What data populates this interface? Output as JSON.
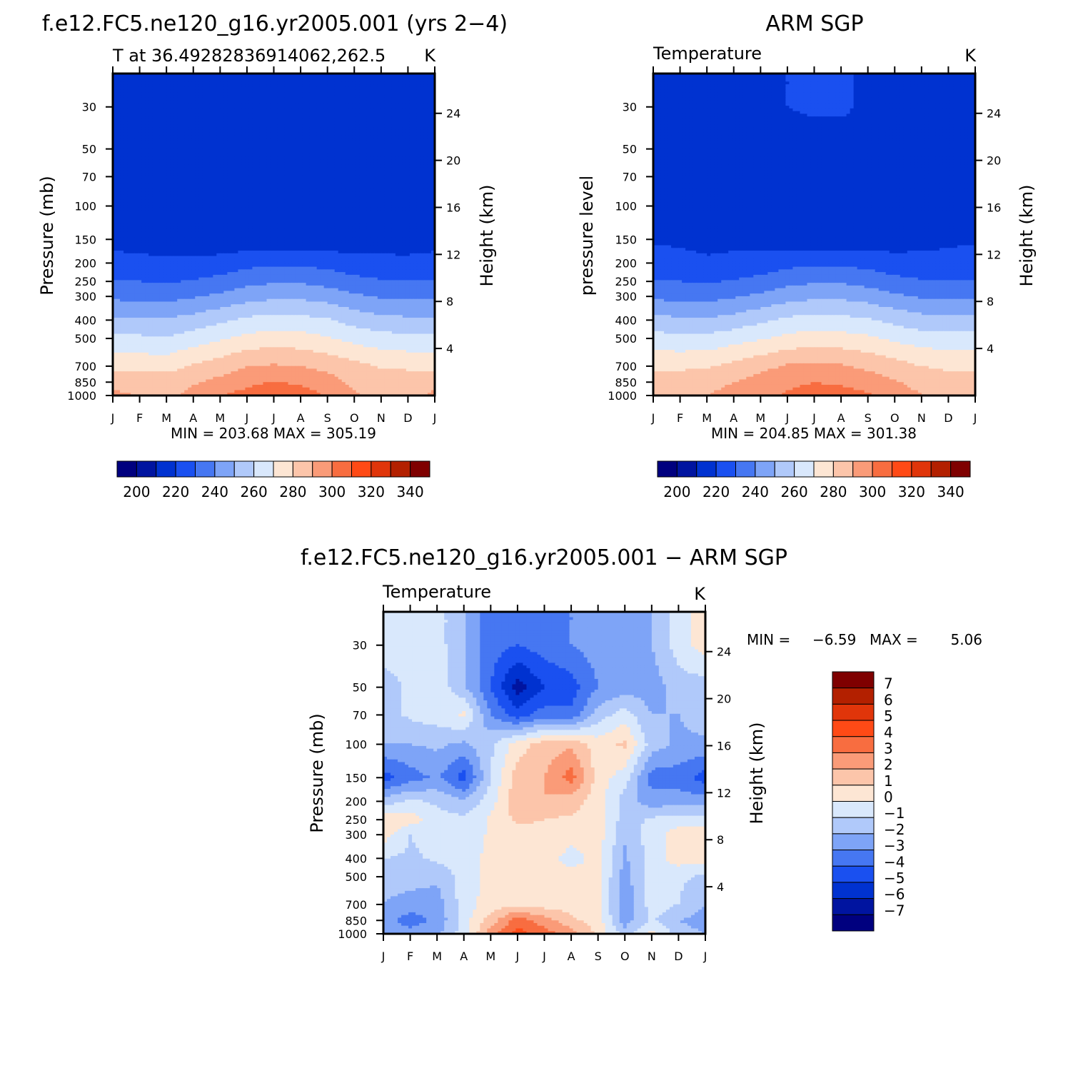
{
  "chart_data": [
    {
      "type": "heatmap",
      "id": "model",
      "title": "f.e12.FC5.ne120_g16.yr2005.001 (yrs 2−4)",
      "subtitle_left": "T at 36.49282836914062,262.5",
      "subtitle_right": "K",
      "ylabel": "Pressure (mb)",
      "ylabel_right": "Height (km)",
      "xlabel": "",
      "months": [
        "J",
        "F",
        "M",
        "A",
        "M",
        "J",
        "J",
        "A",
        "S",
        "O",
        "N",
        "D",
        "J"
      ],
      "pressure_levels": [
        1000,
        850,
        700,
        500,
        400,
        300,
        250,
        200,
        150,
        100,
        70,
        50,
        30
      ],
      "pressure_ticks": [
        "30",
        "50",
        "70",
        "100",
        "150",
        "200",
        "250",
        "300",
        "400",
        "500",
        "700",
        "850",
        "1000"
      ],
      "height_ticks": [
        4,
        8,
        12,
        16,
        20,
        24
      ],
      "ylim_mb": [
        1000,
        20
      ],
      "stats": "MIN = 203.68 MAX = 305.19",
      "colorbar": {
        "levels": [
          190,
          195,
          205,
          215,
          225,
          235,
          245,
          255,
          265,
          275,
          285,
          295,
          305,
          315,
          325,
          335
        ],
        "tick_labels": [
          "200",
          "220",
          "240",
          "260",
          "280",
          "300",
          "320",
          "340"
        ],
        "colors": [
          "#00007f",
          "#0014a0",
          "#0032d0",
          "#1a50f0",
          "#4677f2",
          "#7ea4f7",
          "#b0c9fa",
          "#d9e8fc",
          "#fde6d4",
          "#fcc5aa",
          "#fa9b78",
          "#f86d40",
          "#ff4a16",
          "#e0350a",
          "#b32000",
          "#7f0000"
        ]
      },
      "rows": [
        {
          "p": 1000,
          "values": [
            288,
            284,
            282,
            288,
            294,
            299,
            302,
            300,
            294,
            286,
            282,
            280,
            288
          ]
        },
        {
          "p": 850,
          "values": [
            281,
            281,
            281,
            284,
            288,
            292,
            296,
            293,
            289,
            283,
            281,
            281,
            281
          ]
        },
        {
          "p": 700,
          "values": [
            273,
            272,
            271,
            276,
            280,
            285,
            286,
            285,
            282,
            278,
            274,
            273,
            273
          ]
        },
        {
          "p": 500,
          "values": [
            258,
            257,
            256,
            260,
            264,
            268,
            270,
            269,
            266,
            262,
            259,
            258,
            258
          ]
        },
        {
          "p": 400,
          "values": [
            247,
            246,
            246,
            249,
            253,
            257,
            259,
            258,
            256,
            251,
            248,
            247,
            247
          ]
        },
        {
          "p": 300,
          "values": [
            233,
            232,
            232,
            234,
            237,
            241,
            243,
            243,
            241,
            237,
            234,
            233,
            233
          ]
        },
        {
          "p": 250,
          "values": [
            226,
            225,
            224,
            226,
            228,
            232,
            234,
            234,
            231,
            228,
            226,
            225,
            226
          ]
        },
        {
          "p": 200,
          "values": [
            218,
            217,
            216,
            217,
            219,
            222,
            223,
            223,
            222,
            219,
            218,
            217,
            218
          ]
        },
        {
          "p": 150,
          "values": [
            212,
            212,
            212,
            209,
            208,
            208,
            208,
            208,
            208,
            209,
            210,
            211,
            212
          ]
        },
        {
          "p": 100,
          "values": [
            210,
            212,
            213,
            207,
            206,
            206,
            206,
            206,
            206,
            206,
            207,
            208,
            209
          ]
        },
        {
          "p": 70,
          "values": [
            206,
            208,
            211,
            210,
            207,
            206,
            206,
            206,
            206,
            206,
            207,
            207,
            207
          ]
        },
        {
          "p": 50,
          "values": [
            208,
            208,
            209,
            209,
            209,
            209,
            209,
            209,
            209,
            209,
            208,
            207,
            208
          ]
        },
        {
          "p": 30,
          "values": [
            212,
            212,
            212,
            212,
            212,
            213,
            213,
            213,
            213,
            212,
            212,
            212,
            212
          ]
        }
      ]
    },
    {
      "type": "heatmap",
      "id": "obs",
      "title": "ARM SGP",
      "subtitle_left": "Temperature",
      "subtitle_right": "K",
      "ylabel": "pressure level",
      "ylabel_right": "Height (km)",
      "xlabel": "",
      "months": [
        "J",
        "F",
        "M",
        "A",
        "M",
        "J",
        "J",
        "A",
        "S",
        "O",
        "N",
        "D",
        "J"
      ],
      "pressure_ticks": [
        "30",
        "50",
        "70",
        "100",
        "150",
        "200",
        "250",
        "300",
        "400",
        "500",
        "700",
        "850",
        "1000"
      ],
      "height_ticks": [
        4,
        8,
        12,
        16,
        20,
        24
      ],
      "stats": "MIN = 204.85 MAX = 301.38",
      "rows": [
        {
          "p": 1000,
          "values": [
            282,
            283,
            285,
            288,
            293,
            296,
            299,
            301,
            296,
            290,
            285,
            282,
            282
          ]
        },
        {
          "p": 850,
          "values": [
            279,
            280,
            282,
            285,
            289,
            293,
            295,
            293,
            290,
            286,
            282,
            279,
            279
          ]
        },
        {
          "p": 700,
          "values": [
            273,
            273,
            274,
            278,
            282,
            286,
            287,
            286,
            283,
            279,
            275,
            273,
            273
          ]
        },
        {
          "p": 500,
          "values": [
            259,
            258,
            258,
            261,
            264,
            268,
            270,
            269,
            267,
            263,
            260,
            259,
            259
          ]
        },
        {
          "p": 400,
          "values": [
            248,
            247,
            246,
            249,
            253,
            257,
            259,
            258,
            256,
            252,
            249,
            248,
            248
          ]
        },
        {
          "p": 300,
          "values": [
            233,
            232,
            232,
            234,
            237,
            241,
            243,
            243,
            241,
            237,
            234,
            233,
            233
          ]
        },
        {
          "p": 250,
          "values": [
            226,
            225,
            224,
            226,
            228,
            232,
            234,
            234,
            231,
            228,
            226,
            225,
            226
          ]
        },
        {
          "p": 200,
          "values": [
            218,
            217,
            216,
            217,
            219,
            222,
            223,
            223,
            222,
            219,
            218,
            217,
            218
          ]
        },
        {
          "p": 150,
          "values": [
            214,
            214,
            213,
            213,
            212,
            208,
            208,
            208,
            209,
            210,
            212,
            214,
            214
          ]
        },
        {
          "p": 100,
          "values": [
            210,
            212,
            213,
            212,
            211,
            208,
            207,
            207,
            208,
            209,
            212,
            213,
            211
          ]
        },
        {
          "p": 70,
          "values": [
            206,
            207,
            208,
            207,
            207,
            207,
            207,
            207,
            207,
            208,
            208,
            206,
            206
          ]
        },
        {
          "p": 50,
          "values": [
            210,
            212,
            212,
            212,
            212,
            212,
            212,
            212,
            212,
            212,
            212,
            212,
            211
          ]
        },
        {
          "p": 30,
          "values": [
            212,
            212,
            212,
            213,
            214,
            215,
            216,
            216,
            214,
            213,
            212,
            212,
            212
          ]
        }
      ]
    },
    {
      "type": "heatmap",
      "id": "diff",
      "title": "f.e12.FC5.ne120_g16.yr2005.001 − ARM SGP",
      "subtitle_left": "Temperature",
      "subtitle_right": "K",
      "ylabel": "Pressure (mb)",
      "ylabel_right": "Height (km)",
      "xlabel": "",
      "months": [
        "J",
        "F",
        "M",
        "A",
        "M",
        "J",
        "J",
        "A",
        "S",
        "O",
        "N",
        "D",
        "J"
      ],
      "pressure_ticks": [
        "30",
        "50",
        "70",
        "100",
        "150",
        "200",
        "250",
        "300",
        "400",
        "500",
        "700",
        "850",
        "1000"
      ],
      "height_ticks": [
        4,
        8,
        12,
        16,
        20,
        24
      ],
      "stats_min_label": "MIN =",
      "stats_min": "−6.59",
      "stats_max_label": "MAX =",
      "stats_max": "5.06",
      "colorbar": {
        "levels": [
          -8,
          -7,
          -6,
          -5,
          -4,
          -3,
          -2,
          -1,
          0,
          1,
          2,
          3,
          4,
          5,
          6,
          7,
          8
        ],
        "tick_labels": [
          "7",
          "6",
          "5",
          "4",
          "3",
          "2",
          "1",
          "0",
          "−1",
          "−2",
          "−3",
          "−4",
          "−5",
          "−6",
          "−7"
        ],
        "colors": [
          "#00007f",
          "#0014a0",
          "#0032d0",
          "#1a50f0",
          "#4677f2",
          "#7ea4f7",
          "#b0c9fa",
          "#d9e8fc",
          "#fde6d4",
          "#fcc5aa",
          "#fa9b78",
          "#f86d40",
          "#ff4a16",
          "#e0350a",
          "#b32000",
          "#7f0000"
        ]
      },
      "rows": [
        {
          "p": 1000,
          "values": [
            -2.5,
            -2.5,
            -2.2,
            -0.5,
            2.5,
            4.5,
            3.5,
            2.5,
            0.8,
            -1.5,
            0.5,
            -1.5,
            -2.0
          ]
        },
        {
          "p": 850,
          "values": [
            -2.5,
            -3.5,
            -2.8,
            -0.5,
            1.5,
            3.5,
            2.5,
            1.2,
            0.5,
            -2.5,
            -0.8,
            -2.0,
            -2.5
          ]
        },
        {
          "p": 700,
          "values": [
            -2.0,
            -2.5,
            -2.5,
            -0.5,
            0.5,
            0.8,
            0.5,
            0.5,
            0.3,
            -2.8,
            -0.5,
            -1.0,
            -2.0
          ]
        },
        {
          "p": 500,
          "values": [
            -1.5,
            -1.5,
            -1.8,
            -0.5,
            0.3,
            0.5,
            0.5,
            0.5,
            0.3,
            -2.5,
            -0.3,
            -0.8,
            -1.2
          ]
        },
        {
          "p": 400,
          "values": [
            -1.0,
            -1.2,
            -0.8,
            -0.5,
            0.3,
            0.5,
            0.6,
            -0.5,
            0.4,
            -2.2,
            -0.5,
            0.5,
            0.5
          ]
        },
        {
          "p": 300,
          "values": [
            0.5,
            -1.0,
            -0.5,
            -0.8,
            0.2,
            0.5,
            0.8,
            0.5,
            0.5,
            -1.8,
            -0.5,
            0.5,
            0.5
          ]
        },
        {
          "p": 250,
          "values": [
            0.8,
            0.5,
            -0.5,
            -0.8,
            0.2,
            1.2,
            1.0,
            0.8,
            0.5,
            -1.5,
            -0.8,
            -0.5,
            -0.5
          ]
        },
        {
          "p": 200,
          "values": [
            -1.5,
            -0.8,
            -1.2,
            -1.8,
            -0.5,
            1.8,
            2.0,
            1.5,
            0.5,
            -1.5,
            -2.5,
            -2.5,
            -2.5
          ]
        },
        {
          "p": 150,
          "values": [
            -4.5,
            -3.5,
            -2.8,
            -4.5,
            -1.0,
            1.5,
            2.0,
            3.5,
            0.5,
            -0.5,
            -3.5,
            -3.5,
            -4.5
          ]
        },
        {
          "p": 100,
          "values": [
            -2.0,
            -2.0,
            -1.8,
            -2.2,
            -1.2,
            0.5,
            1.5,
            1.8,
            0.5,
            1.2,
            -1.5,
            -2.2,
            -2.2
          ]
        },
        {
          "p": 70,
          "values": [
            -1.5,
            -0.8,
            -0.5,
            0.2,
            -3.0,
            -4.5,
            -3.5,
            -3.8,
            -1.5,
            -0.5,
            -2.0,
            -2.0,
            -1.5
          ]
        },
        {
          "p": 50,
          "values": [
            -1.5,
            -0.8,
            -0.3,
            -1.8,
            -4.0,
            -6.5,
            -5.0,
            -4.5,
            -3.0,
            -2.5,
            -2.5,
            -1.5,
            -1.5
          ]
        },
        {
          "p": 30,
          "values": [
            -0.5,
            -0.5,
            -0.5,
            -2.0,
            -3.5,
            -4.0,
            -3.5,
            -3.0,
            -2.5,
            -2.5,
            -2.0,
            -0.5,
            0.5
          ]
        }
      ]
    }
  ]
}
